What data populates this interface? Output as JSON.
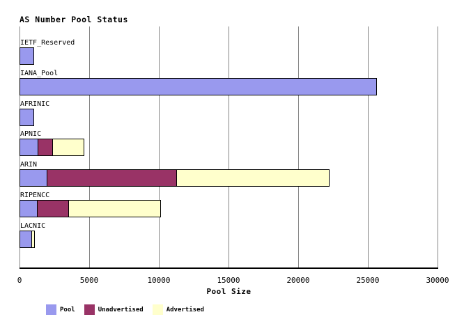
{
  "title": "AS Number Pool Status",
  "chart_data": {
    "type": "bar",
    "orientation": "horizontal",
    "stacked": true,
    "title": "AS Number Pool Status",
    "xlabel": "Pool Size",
    "ylabel": "",
    "xlim": [
      0,
      30000
    ],
    "xticks": [
      0,
      5000,
      10000,
      15000,
      20000,
      25000,
      30000
    ],
    "grid": true,
    "legend_position": "bottom",
    "categories": [
      "IETF_Reserved",
      "IANA_Pool",
      "AFRINIC",
      "APNIC",
      "ARIN",
      "RIPENCC",
      "LACNIC"
    ],
    "series": [
      {
        "name": "Pool",
        "color": "#9999ee",
        "values": [
          1000,
          25600,
          1000,
          1300,
          1950,
          1250,
          850
        ]
      },
      {
        "name": "Unadvertised",
        "color": "#993366",
        "values": [
          0,
          0,
          0,
          1050,
          9300,
          2250,
          0
        ]
      },
      {
        "name": "Advertised",
        "color": "#ffffcc",
        "values": [
          0,
          0,
          0,
          2250,
          10950,
          6600,
          200
        ]
      }
    ]
  },
  "colors": {
    "pool": "#9999ee",
    "unadvertised": "#993366",
    "advertised": "#ffffcc",
    "gridline": "#848484",
    "axis": "#000000",
    "background": "#ffffff"
  }
}
